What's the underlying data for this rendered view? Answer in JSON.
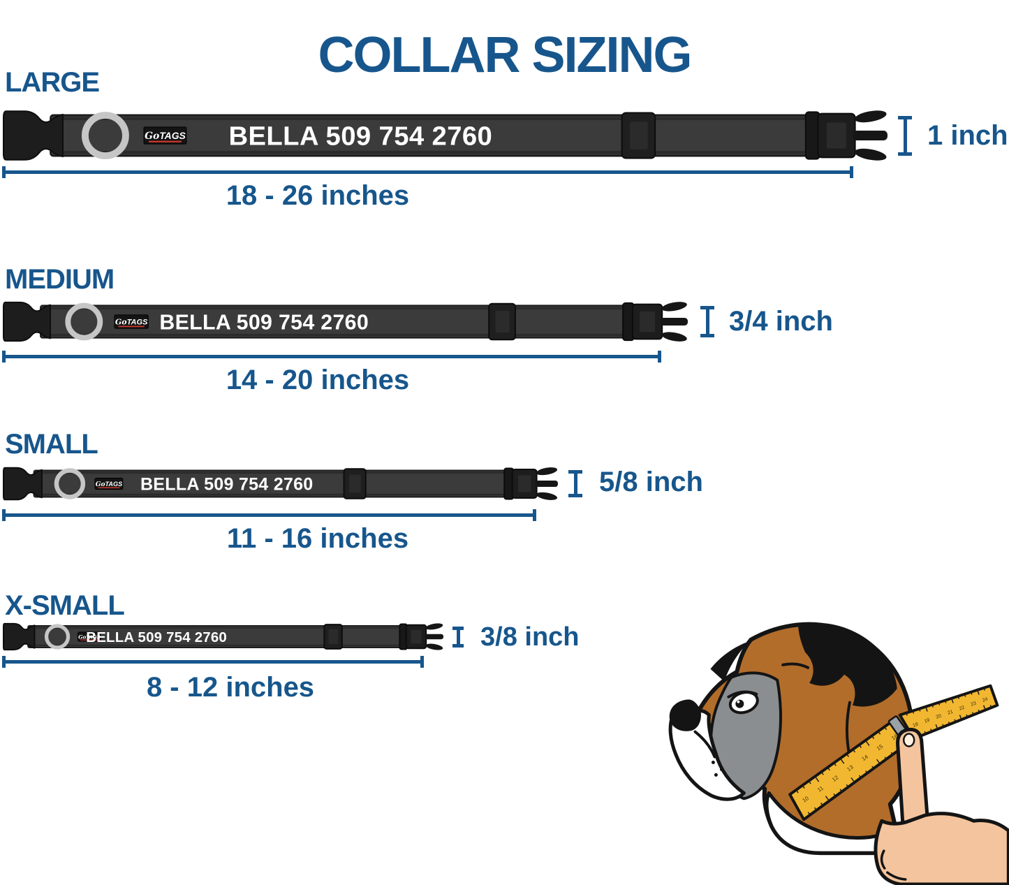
{
  "title": "COLLAR SIZING",
  "colors": {
    "accent": "#17568c",
    "collar_strap": "#3b3b3b",
    "collar_hardware": "#1d1d1d",
    "ring_silver": "#c6c6c6",
    "name_text": "#ffffff",
    "logo_red": "#c9372c",
    "tape_yellow": "#f2b731",
    "dog_brown": "#b26d2b",
    "dog_gray": "#8a8e91",
    "skin": "#f3c49d"
  },
  "collar_text": "BELLA 509 754 2760",
  "logo": {
    "go": "Go",
    "tags": "TAGS"
  },
  "sizes": [
    {
      "label": "LARGE",
      "range": "18 - 26 inches",
      "width_label": "1 inch"
    },
    {
      "label": "MEDIUM",
      "range": "14 - 20 inches",
      "width_label": "3/4 inch"
    },
    {
      "label": "SMALL",
      "range": "11 - 16 inches",
      "width_label": "5/8 inch"
    },
    {
      "label": "X-SMALL",
      "range": "8 - 12 inches",
      "width_label": "3/8 inch"
    }
  ],
  "illustration": {
    "tape_numbers": [
      "10",
      "11",
      "12",
      "13",
      "14",
      "15",
      "16",
      "18",
      "19",
      "20",
      "21",
      "22",
      "23",
      "24"
    ]
  }
}
